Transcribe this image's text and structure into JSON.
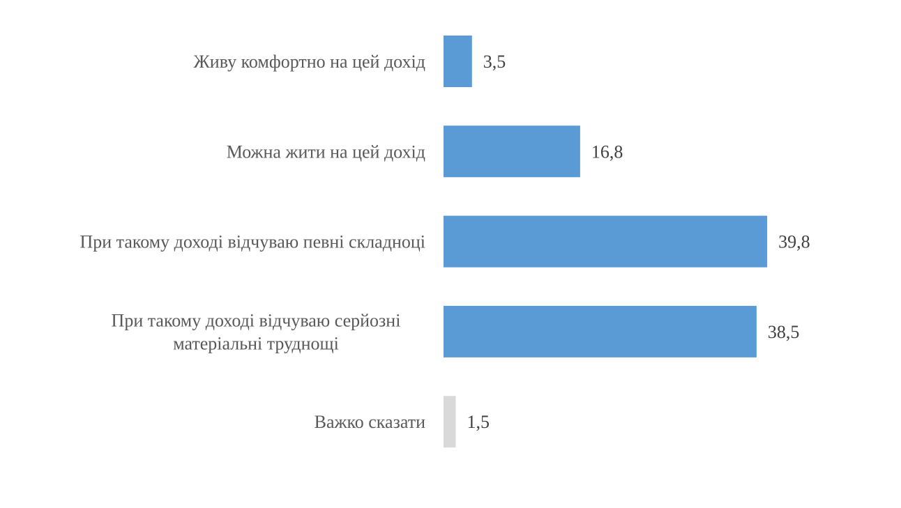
{
  "chart_data": {
    "type": "bar",
    "orientation": "horizontal",
    "title": "",
    "xlabel": "",
    "ylabel": "",
    "grid": false,
    "legend": "none",
    "categories": [
      "Живу комфортно на цей дохід",
      "Можна жити на цей дохід",
      "При такому доході відчуваю певні складноці",
      "При такому доході відчуваю серйозні матеріальні труднощі",
      "Важко сказати"
    ],
    "category_lines": [
      [
        "Живу комфортно на цей дохід"
      ],
      [
        "Можна жити на цей дохід"
      ],
      [
        "При такому доході відчуваю певні складноці"
      ],
      [
        "При такому доході відчуваю серйозні",
        "матеріальні труднощі"
      ],
      [
        "Важко сказати"
      ]
    ],
    "values": [
      3.5,
      16.8,
      39.8,
      38.5,
      1.5
    ],
    "value_labels": [
      "3,5",
      "16,8",
      "39,8",
      "38,5",
      "1,5"
    ],
    "colors": [
      "#5b9bd5",
      "#5b9bd5",
      "#5b9bd5",
      "#5b9bd5",
      "#d9d9d9"
    ]
  }
}
